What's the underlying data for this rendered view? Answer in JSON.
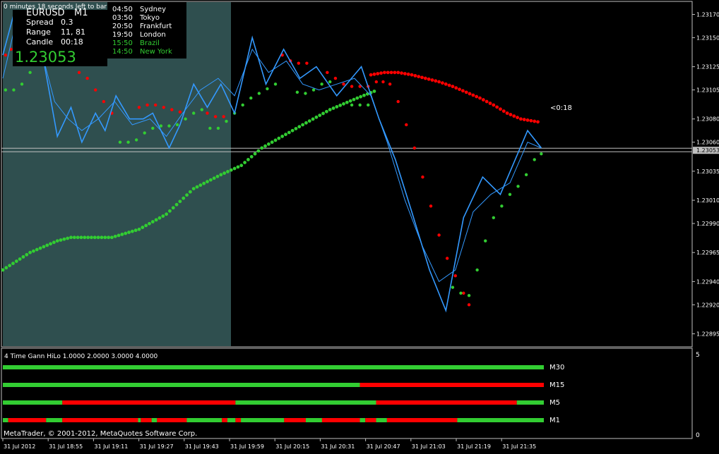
{
  "chart_data": {
    "type": "line",
    "title": "",
    "top_note": "0 minutes 18 seconds left to bar end",
    "symbol": "EURUSD",
    "timeframe": "M1",
    "info_labels": [
      {
        "label": "Spread",
        "value": "0.3"
      },
      {
        "label": "Range",
        "value": "11, 81"
      },
      {
        "label": "Candle",
        "value": "00:18"
      }
    ],
    "bid_price": "1.23053",
    "sessions": [
      {
        "time": "04:50",
        "name": "Sydney",
        "color": "#ffffff"
      },
      {
        "time": "03:50",
        "name": "Tokyo",
        "color": "#ffffff"
      },
      {
        "time": "20:50",
        "name": "Frankfurt",
        "color": "#ffffff"
      },
      {
        "time": "19:50",
        "name": "London",
        "color": "#ffffff"
      },
      {
        "time": "15:50",
        "name": "Brazil",
        "color": "#32cd32"
      },
      {
        "time": "14:50",
        "name": "New York",
        "color": "#32cd32"
      }
    ],
    "countdown_label": "<0:18",
    "y_ticks": [
      "1.23170",
      "1.23150",
      "1.23125",
      "1.23105",
      "1.23080",
      "1.23060",
      "1.23035",
      "1.23010",
      "1.22990",
      "1.22965",
      "1.22940",
      "1.22920",
      "1.22895"
    ],
    "current_price_label": "1.23053",
    "ylim": [
      1.22885,
      1.2318
    ],
    "x_ticks": [
      "31 Jul 2012",
      "31 Jul 18:55",
      "31 Jul 19:11",
      "31 Jul 19:27",
      "31 Jul 19:43",
      "31 Jul 19:59",
      "31 Jul 20:15",
      "31 Jul 20:31",
      "31 Jul 20:47",
      "31 Jul 21:03",
      "31 Jul 21:19",
      "31 Jul 21:35"
    ],
    "x_count": 192,
    "series": [
      {
        "kind": "zigzag",
        "color": "#3399ff",
        "points": [
          [
            0,
            1.23135
          ],
          [
            8,
            1.2317
          ],
          [
            20,
            1.23155
          ],
          [
            30,
            1.2313
          ],
          [
            40,
            1.23065
          ],
          [
            50,
            1.2309
          ],
          [
            58,
            1.2306
          ],
          [
            68,
            1.23085
          ],
          [
            75,
            1.2307
          ],
          [
            83,
            1.231
          ],
          [
            93,
            1.2308
          ],
          [
            103,
            1.2308
          ],
          [
            110,
            1.23085
          ],
          [
            122,
            1.23055
          ],
          [
            130,
            1.23075
          ],
          [
            140,
            1.2311
          ],
          [
            150,
            1.2309
          ],
          [
            160,
            1.2311
          ],
          [
            170,
            1.23085
          ],
          [
            183,
            1.2315
          ],
          [
            193,
            1.2311
          ],
          [
            206,
            1.2314
          ],
          [
            218,
            1.23115
          ],
          [
            230,
            1.23125
          ],
          [
            245,
            1.231
          ],
          [
            263,
            1.23125
          ],
          [
            276,
            1.2308
          ],
          [
            288,
            1.23045
          ],
          [
            300,
            1.23
          ],
          [
            313,
            1.2295
          ],
          [
            325,
            1.22915
          ],
          [
            338,
            1.22995
          ],
          [
            352,
            1.2303
          ],
          [
            365,
            1.23015
          ],
          [
            385,
            1.2307
          ],
          [
            395,
            1.23055
          ]
        ]
      },
      {
        "kind": "fast-line",
        "color": "#3399ff",
        "points": [
          [
            0,
            1.23115
          ],
          [
            8,
            1.23155
          ],
          [
            18,
            1.2316
          ],
          [
            28,
            1.2314
          ],
          [
            38,
            1.23095
          ],
          [
            48,
            1.2308
          ],
          [
            58,
            1.2307
          ],
          [
            70,
            1.2308
          ],
          [
            82,
            1.23095
          ],
          [
            95,
            1.23075
          ],
          [
            108,
            1.2308
          ],
          [
            120,
            1.23065
          ],
          [
            132,
            1.23085
          ],
          [
            145,
            1.23105
          ],
          [
            158,
            1.23115
          ],
          [
            170,
            1.231
          ],
          [
            183,
            1.2314
          ],
          [
            195,
            1.2312
          ],
          [
            208,
            1.2313
          ],
          [
            220,
            1.2311
          ],
          [
            232,
            1.23105
          ],
          [
            245,
            1.2311
          ],
          [
            258,
            1.23115
          ],
          [
            270,
            1.231
          ],
          [
            282,
            1.2306
          ],
          [
            295,
            1.2301
          ],
          [
            308,
            1.2297
          ],
          [
            320,
            1.2294
          ],
          [
            332,
            1.2295
          ],
          [
            345,
            1.23
          ],
          [
            358,
            1.23015
          ],
          [
            372,
            1.23025
          ],
          [
            385,
            1.2306
          ],
          [
            395,
            1.23055
          ]
        ]
      }
    ],
    "gann_red_points": [
      [
        2,
        1.23135
      ],
      [
        6,
        1.2314
      ],
      [
        10,
        1.23145
      ],
      [
        14,
        1.23145
      ],
      [
        50,
        1.2313
      ],
      [
        56,
        1.2312
      ],
      [
        62,
        1.23115
      ],
      [
        68,
        1.23105
      ],
      [
        74,
        1.23095
      ],
      [
        80,
        1.23085
      ],
      [
        100,
        1.2309
      ],
      [
        106,
        1.23092
      ],
      [
        112,
        1.23092
      ],
      [
        118,
        1.2309
      ],
      [
        124,
        1.23088
      ],
      [
        130,
        1.23086
      ],
      [
        150,
        1.23085
      ],
      [
        156,
        1.23082
      ],
      [
        162,
        1.23082
      ],
      [
        205,
        1.23135
      ],
      [
        211,
        1.2313
      ],
      [
        217,
        1.23128
      ],
      [
        223,
        1.23128
      ],
      [
        238,
        1.2312
      ],
      [
        244,
        1.23115
      ],
      [
        250,
        1.2311
      ],
      [
        256,
        1.23108
      ],
      [
        262,
        1.23108
      ],
      [
        268,
        1.23108
      ],
      [
        274,
        1.23112
      ],
      [
        279,
        1.23112
      ],
      [
        284,
        1.2311
      ],
      [
        290,
        1.23095
      ],
      [
        296,
        1.23075
      ],
      [
        302,
        1.23055
      ],
      [
        308,
        1.2303
      ],
      [
        314,
        1.23005
      ],
      [
        320,
        1.2298
      ],
      [
        326,
        1.2296
      ],
      [
        332,
        1.22945
      ],
      [
        338,
        1.2293
      ],
      [
        342,
        1.2292
      ]
    ],
    "gann_green_points": [
      [
        2,
        1.23105
      ],
      [
        8,
        1.23105
      ],
      [
        14,
        1.2311
      ],
      [
        20,
        1.2312
      ],
      [
        26,
        1.2313
      ],
      [
        30,
        1.2314
      ],
      [
        86,
        1.2306
      ],
      [
        92,
        1.2306
      ],
      [
        98,
        1.23062
      ],
      [
        104,
        1.23068
      ],
      [
        110,
        1.23072
      ],
      [
        116,
        1.23074
      ],
      [
        122,
        1.23074
      ],
      [
        128,
        1.23075
      ],
      [
        134,
        1.2308
      ],
      [
        140,
        1.23085
      ],
      [
        146,
        1.23088
      ],
      [
        152,
        1.23072
      ],
      [
        158,
        1.23072
      ],
      [
        164,
        1.23078
      ],
      [
        170,
        1.23085
      ],
      [
        176,
        1.23092
      ],
      [
        182,
        1.23098
      ],
      [
        188,
        1.23102
      ],
      [
        194,
        1.23106
      ],
      [
        200,
        1.2311
      ],
      [
        216,
        1.23103
      ],
      [
        222,
        1.23102
      ],
      [
        228,
        1.23105
      ],
      [
        234,
        1.2311
      ],
      [
        240,
        1.23112
      ],
      [
        256,
        1.23092
      ],
      [
        262,
        1.23092
      ],
      [
        268,
        1.23092
      ],
      [
        330,
        1.22935
      ],
      [
        336,
        1.2293
      ],
      [
        342,
        1.22928
      ],
      [
        348,
        1.2295
      ],
      [
        354,
        1.22975
      ],
      [
        360,
        1.22995
      ],
      [
        366,
        1.23005
      ],
      [
        372,
        1.23015
      ],
      [
        378,
        1.23022
      ],
      [
        384,
        1.23032
      ],
      [
        390,
        1.23045
      ],
      [
        395,
        1.2305
      ]
    ],
    "ma_red_points": [
      [
        270,
        1.23118
      ],
      [
        280,
        1.2312
      ],
      [
        290,
        1.2312
      ],
      [
        300,
        1.23118
      ],
      [
        310,
        1.23115
      ],
      [
        320,
        1.23112
      ],
      [
        330,
        1.23108
      ],
      [
        340,
        1.23103
      ],
      [
        350,
        1.23098
      ],
      [
        360,
        1.23092
      ],
      [
        370,
        1.23085
      ],
      [
        380,
        1.2308
      ],
      [
        390,
        1.23078
      ],
      [
        395,
        1.23077
      ]
    ],
    "ma_green_points": [
      [
        0,
        1.2295
      ],
      [
        20,
        1.22965
      ],
      [
        40,
        1.22975
      ],
      [
        50,
        1.22978
      ],
      [
        60,
        1.22978
      ],
      [
        80,
        1.22978
      ],
      [
        100,
        1.22985
      ],
      [
        120,
        1.22998
      ],
      [
        140,
        1.2302
      ],
      [
        160,
        1.23032
      ],
      [
        175,
        1.2304
      ],
      [
        190,
        1.23055
      ],
      [
        205,
        1.23065
      ],
      [
        220,
        1.23075
      ],
      [
        240,
        1.23088
      ],
      [
        260,
        1.23098
      ],
      [
        275,
        1.23105
      ]
    ],
    "indicator": {
      "label": "4 Time Gann HiLo 1.0000 2.0000 3.0000 4.0000",
      "scale_top": "5",
      "scale_bottom": "0",
      "rows": [
        {
          "name": "M30",
          "segments": [
            {
              "state": "up",
              "end": 1.0
            }
          ]
        },
        {
          "name": "M15",
          "segments": [
            {
              "state": "up",
              "end": 0.66
            },
            {
              "state": "down",
              "end": 1.0
            }
          ]
        },
        {
          "name": "M5",
          "segments": [
            {
              "state": "up",
              "end": 0.11
            },
            {
              "state": "down",
              "end": 0.43
            },
            {
              "state": "up",
              "end": 0.69
            },
            {
              "state": "down",
              "end": 0.95
            },
            {
              "state": "up",
              "end": 1.0
            }
          ]
        },
        {
          "name": "M1",
          "segments": [
            {
              "state": "up",
              "end": 0.01
            },
            {
              "state": "down",
              "end": 0.08
            },
            {
              "state": "up",
              "end": 0.11
            },
            {
              "state": "down",
              "end": 0.25
            },
            {
              "state": "up",
              "end": 0.255
            },
            {
              "state": "down",
              "end": 0.275
            },
            {
              "state": "up",
              "end": 0.285
            },
            {
              "state": "down",
              "end": 0.34
            },
            {
              "state": "up",
              "end": 0.405
            },
            {
              "state": "down",
              "end": 0.415
            },
            {
              "state": "up",
              "end": 0.43
            },
            {
              "state": "down",
              "end": 0.44
            },
            {
              "state": "up",
              "end": 0.52
            },
            {
              "state": "down",
              "end": 0.56
            },
            {
              "state": "up",
              "end": 0.59
            },
            {
              "state": "down",
              "end": 0.66
            },
            {
              "state": "up",
              "end": 0.67
            },
            {
              "state": "down",
              "end": 0.69
            },
            {
              "state": "up",
              "end": 0.71
            },
            {
              "state": "down",
              "end": 0.84
            },
            {
              "state": "up",
              "end": 1.0
            }
          ]
        }
      ]
    },
    "copyright": "MetaTrader, © 2001-2012, MetaQuotes Software Corp.",
    "colors": {
      "up": "#32cd32",
      "down": "#ff0000",
      "zigzag": "#3399ff",
      "session_band": "#2f4f4f",
      "grid": "#c0c0c0"
    }
  }
}
